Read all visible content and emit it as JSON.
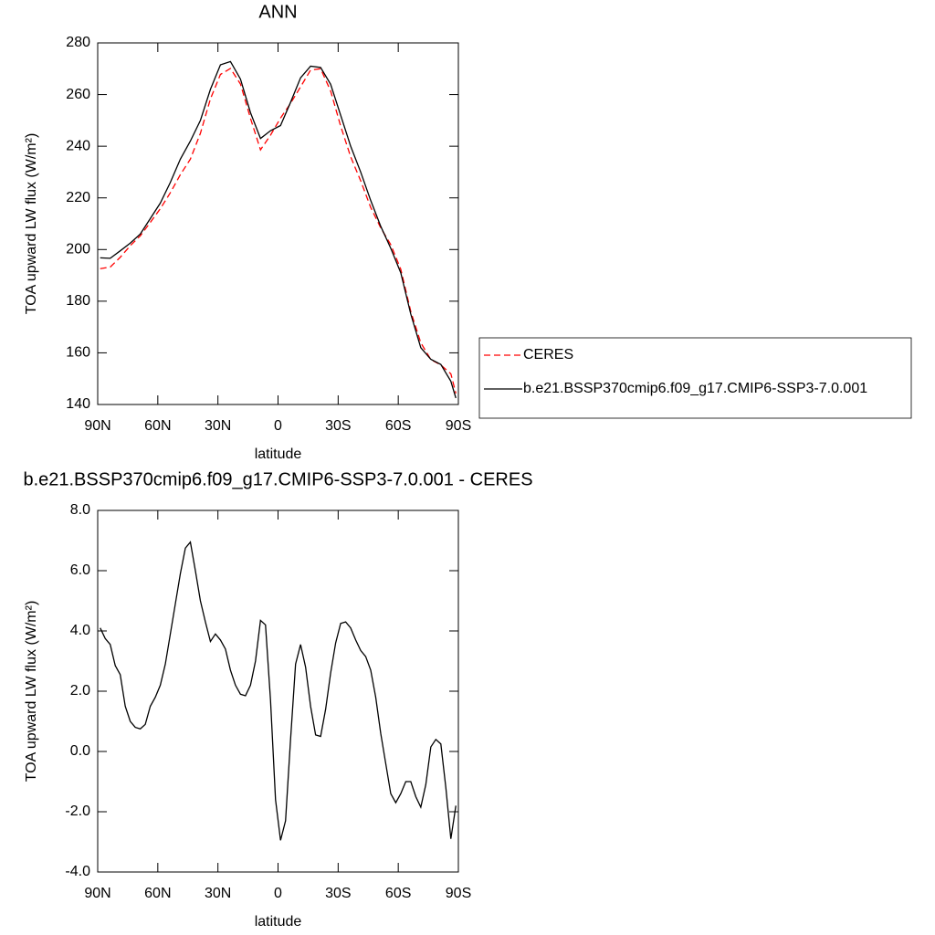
{
  "chart_data": [
    {
      "type": "line",
      "title": "ANN",
      "xlabel": "latitude",
      "ylabel": "TOA upward LW flux (W/m²)",
      "x": [
        88.75,
        83.75,
        78.75,
        73.75,
        68.75,
        63.75,
        58.75,
        53.75,
        48.75,
        43.75,
        38.75,
        33.75,
        28.75,
        23.75,
        18.75,
        13.75,
        8.75,
        3.75,
        -1.25,
        -6.25,
        -11.25,
        -16.25,
        -21.25,
        -26.25,
        -31.25,
        -36.25,
        -41.25,
        -46.25,
        -51.25,
        -56.25,
        -61.25,
        -66.25,
        -71.25,
        -76.25,
        -81.25,
        -86.25,
        -88.75
      ],
      "series": [
        {
          "name": "CERES",
          "color": "#ff0000",
          "line_style": "dashed",
          "values": [
            192.6,
            193.2,
            197,
            201.5,
            205.3,
            210.5,
            215.8,
            222,
            229,
            235,
            245,
            258.3,
            267.8,
            270.1,
            264.1,
            250.8,
            238.6,
            244.3,
            250.9,
            256.6,
            263,
            269.5,
            270,
            261.4,
            247.8,
            235.9,
            226.6,
            216.3,
            208.4,
            201.9,
            192.4,
            176,
            163.9,
            157.4,
            155.3,
            151.9,
            144.3
          ]
        },
        {
          "name": "b.e21.BSSP370cmip6.f09_g17.CMIP6-SSP3-7.0.001",
          "color": "#000000",
          "line_style": "solid",
          "values": [
            196.8,
            196.6,
            199.5,
            202.5,
            206,
            212,
            218,
            226,
            235,
            242,
            250,
            262,
            271.5,
            272.8,
            266,
            253,
            243,
            246,
            248,
            257,
            266.5,
            271,
            270.5,
            264,
            252,
            240,
            230,
            219,
            209,
            200.5,
            191,
            175,
            162,
            157.5,
            155.5,
            149,
            142.5
          ]
        }
      ],
      "xlim": [
        90,
        -90
      ],
      "xticks": [
        {
          "value": 90,
          "label": "90N"
        },
        {
          "value": 60,
          "label": "60N"
        },
        {
          "value": 30,
          "label": "30N"
        },
        0,
        {
          "value": -30,
          "label": "30S"
        },
        {
          "value": -60,
          "label": "60S"
        },
        {
          "value": -90,
          "label": "90S"
        }
      ],
      "ylim": [
        140,
        280
      ],
      "yticks": [
        140,
        160,
        180,
        200,
        220,
        240,
        260,
        280
      ],
      "legend": "right"
    },
    {
      "type": "line",
      "title": "b.e21.BSSP370cmip6.f09_g17.CMIP6-SSP3-7.0.001 - CERES",
      "xlabel": "latitude",
      "ylabel": "TOA upward LW flux (W/m²)",
      "x": [
        88.75,
        86.25,
        83.75,
        81.25,
        78.75,
        76.25,
        73.75,
        71.25,
        68.75,
        66.25,
        63.75,
        61.25,
        58.75,
        56.25,
        53.75,
        51.25,
        48.75,
        46.25,
        43.75,
        41.25,
        38.75,
        36.25,
        33.75,
        31.25,
        28.75,
        26.25,
        23.75,
        21.25,
        18.75,
        16.25,
        13.75,
        11.25,
        8.75,
        6.25,
        3.75,
        1.25,
        -1.25,
        -3.75,
        -6.25,
        -8.75,
        -11.25,
        -13.75,
        -16.25,
        -18.75,
        -21.25,
        -23.75,
        -26.25,
        -28.75,
        -31.25,
        -33.75,
        -36.25,
        -38.75,
        -41.25,
        -43.75,
        -46.25,
        -48.75,
        -51.25,
        -53.75,
        -56.25,
        -58.75,
        -61.25,
        -63.75,
        -66.25,
        -68.75,
        -71.25,
        -73.75,
        -76.25,
        -78.75,
        -81.25,
        -83.75,
        -86.25,
        -88.75
      ],
      "series": [
        {
          "color": "#000000",
          "line_style": "solid",
          "values": [
            4.1,
            3.75,
            3.55,
            2.85,
            2.55,
            1.5,
            1.0,
            0.8,
            0.75,
            0.9,
            1.5,
            1.8,
            2.2,
            2.9,
            3.9,
            4.9,
            5.9,
            6.75,
            6.95,
            6.0,
            5.0,
            4.3,
            3.65,
            3.9,
            3.7,
            3.4,
            2.7,
            2.2,
            1.9,
            1.85,
            2.2,
            3.0,
            4.35,
            4.2,
            1.7,
            -1.6,
            -2.95,
            -2.3,
            0.4,
            2.9,
            3.55,
            2.8,
            1.5,
            0.55,
            0.5,
            1.4,
            2.6,
            3.6,
            4.25,
            4.3,
            4.1,
            3.7,
            3.35,
            3.15,
            2.7,
            1.8,
            0.6,
            -0.4,
            -1.4,
            -1.7,
            -1.4,
            -1.0,
            -1.0,
            -1.5,
            -1.85,
            -1.1,
            0.15,
            0.4,
            0.25,
            -1.2,
            -2.9,
            -1.8
          ]
        }
      ],
      "xlim": [
        90,
        -90
      ],
      "xticks": [
        {
          "value": 90,
          "label": "90N"
        },
        {
          "value": 60,
          "label": "60N"
        },
        {
          "value": 30,
          "label": "30N"
        },
        0,
        {
          "value": -30,
          "label": "30S"
        },
        {
          "value": -60,
          "label": "60S"
        },
        {
          "value": -90,
          "label": "90S"
        }
      ],
      "ylim": [
        -4,
        8
      ],
      "yticks": [
        {
          "value": -4,
          "label": "-4.0"
        },
        {
          "value": -2,
          "label": "-2.0"
        },
        {
          "value": 0,
          "label": "0.0"
        },
        {
          "value": 2,
          "label": "2.0"
        },
        {
          "value": 4,
          "label": "4.0"
        },
        {
          "value": 6,
          "label": "6.0"
        },
        {
          "value": 8,
          "label": "8.0"
        }
      ]
    }
  ]
}
